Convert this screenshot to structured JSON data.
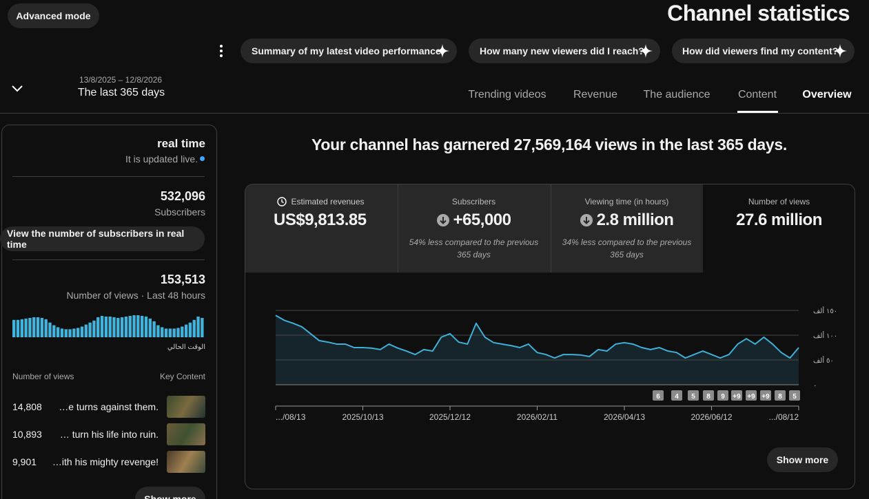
{
  "header": {
    "advanced_mode": "Advanced mode",
    "title": "Channel statistics",
    "prompts": [
      "Summary of my latest video performance",
      "How many new viewers did I reach?",
      "How did viewers find my content?"
    ],
    "date_range": "13/8/2025 – 12/8/2026",
    "period": "The last 365 days",
    "tabs": [
      "Trending videos",
      "Revenue",
      "The audience",
      "Content",
      "Overview"
    ]
  },
  "sidebar": {
    "realtime": {
      "title": "real time",
      "note": "It is updated live."
    },
    "subscribers": {
      "value": "532,096",
      "label": "Subscribers",
      "button": "View the number of subscribers in real time"
    },
    "views": {
      "value": "153,513",
      "label": "Number of views · Last 48 hours",
      "chart": {
        "type": "bar",
        "color": "#41b4de",
        "values": [
          3640,
          3640,
          3780,
          3920,
          4060,
          4200,
          4200,
          4060,
          3780,
          3080,
          2520,
          2100,
          1820,
          1680,
          1680,
          1820,
          1960,
          2240,
          2660,
          3080,
          3500,
          4200,
          4480,
          4340,
          4340,
          4200,
          4060,
          4200,
          4340,
          4480,
          4620,
          4620,
          4480,
          4340,
          3920,
          3360,
          2520,
          2100,
          1820,
          1820,
          1820,
          1960,
          2240,
          2660,
          3080,
          3640,
          4340,
          4060
        ],
        "x_label": "الوقت الحالي"
      }
    },
    "top_content": {
      "columns": [
        "Number of views",
        "Key Content"
      ],
      "rows": [
        {
          "views": "14,808",
          "title": "…e turns against them."
        },
        {
          "views": "10,893",
          "title": "… turn his life into ruin."
        },
        {
          "views": "9,901",
          "title": "…ith his mighty revenge!"
        }
      ],
      "show_more": "Show more"
    }
  },
  "main": {
    "headline": "Your channel has garnered 27,569,164 views in the last 365 days.",
    "metrics": [
      {
        "title": "Estimated revenues",
        "value": "US$9,813.85"
      },
      {
        "title": "Subscribers",
        "value": "+65,000",
        "note": "54% less compared to the previous 365 days"
      },
      {
        "title": "Viewing time (in hours)",
        "value": "2.8 million",
        "note": "34% less compared to the previous 365 days"
      },
      {
        "title": "Number of views",
        "value": "27.6 million"
      }
    ],
    "chart": {
      "type": "line",
      "color": "#3fb0d8",
      "categories": [
        ".../08/13",
        null,
        null,
        null,
        null,
        null,
        null,
        null,
        null,
        null,
        "2025/10/13",
        null,
        null,
        null,
        null,
        null,
        null,
        null,
        null,
        null,
        "2025/12/12",
        null,
        null,
        null,
        null,
        null,
        null,
        null,
        null,
        null,
        "2026/02/11",
        null,
        null,
        null,
        null,
        null,
        null,
        null,
        null,
        null,
        "2026/04/13",
        null,
        null,
        null,
        null,
        null,
        null,
        null,
        null,
        null,
        "2026/06/12",
        null,
        null,
        null,
        null,
        null,
        null,
        null,
        null,
        null,
        ".../08/12"
      ],
      "values": [
        140000,
        130000,
        124000,
        117000,
        103000,
        89000,
        86000,
        82000,
        82000,
        75000,
        75000,
        74000,
        71000,
        82000,
        74000,
        68000,
        61000,
        71000,
        68000,
        96000,
        103000,
        86000,
        82000,
        124000,
        96000,
        85000,
        82000,
        79000,
        75000,
        82000,
        65000,
        61000,
        54000,
        61000,
        61000,
        60000,
        57000,
        71000,
        68000,
        82000,
        85000,
        82000,
        75000,
        71000,
        75000,
        68000,
        65000,
        54000,
        61000,
        68000,
        61000,
        54000,
        61000,
        82000,
        93000,
        82000,
        96000,
        82000,
        65000,
        54000,
        75000
      ],
      "ylim": [
        0,
        150000
      ],
      "yticks": [
        {
          "value": 0,
          "label": "٠"
        },
        {
          "value": 50000,
          "label": "٥٠ ألف"
        },
        {
          "value": 100000,
          "label": "١٠٠ ألف"
        },
        {
          "value": 150000,
          "label": "١٥٠ ألف"
        }
      ],
      "grid": true,
      "markers": [
        "6",
        "4",
        "5",
        "8",
        "9",
        "+9",
        "+9",
        "+9",
        "8",
        "5"
      ]
    },
    "show_more": "Show more"
  }
}
